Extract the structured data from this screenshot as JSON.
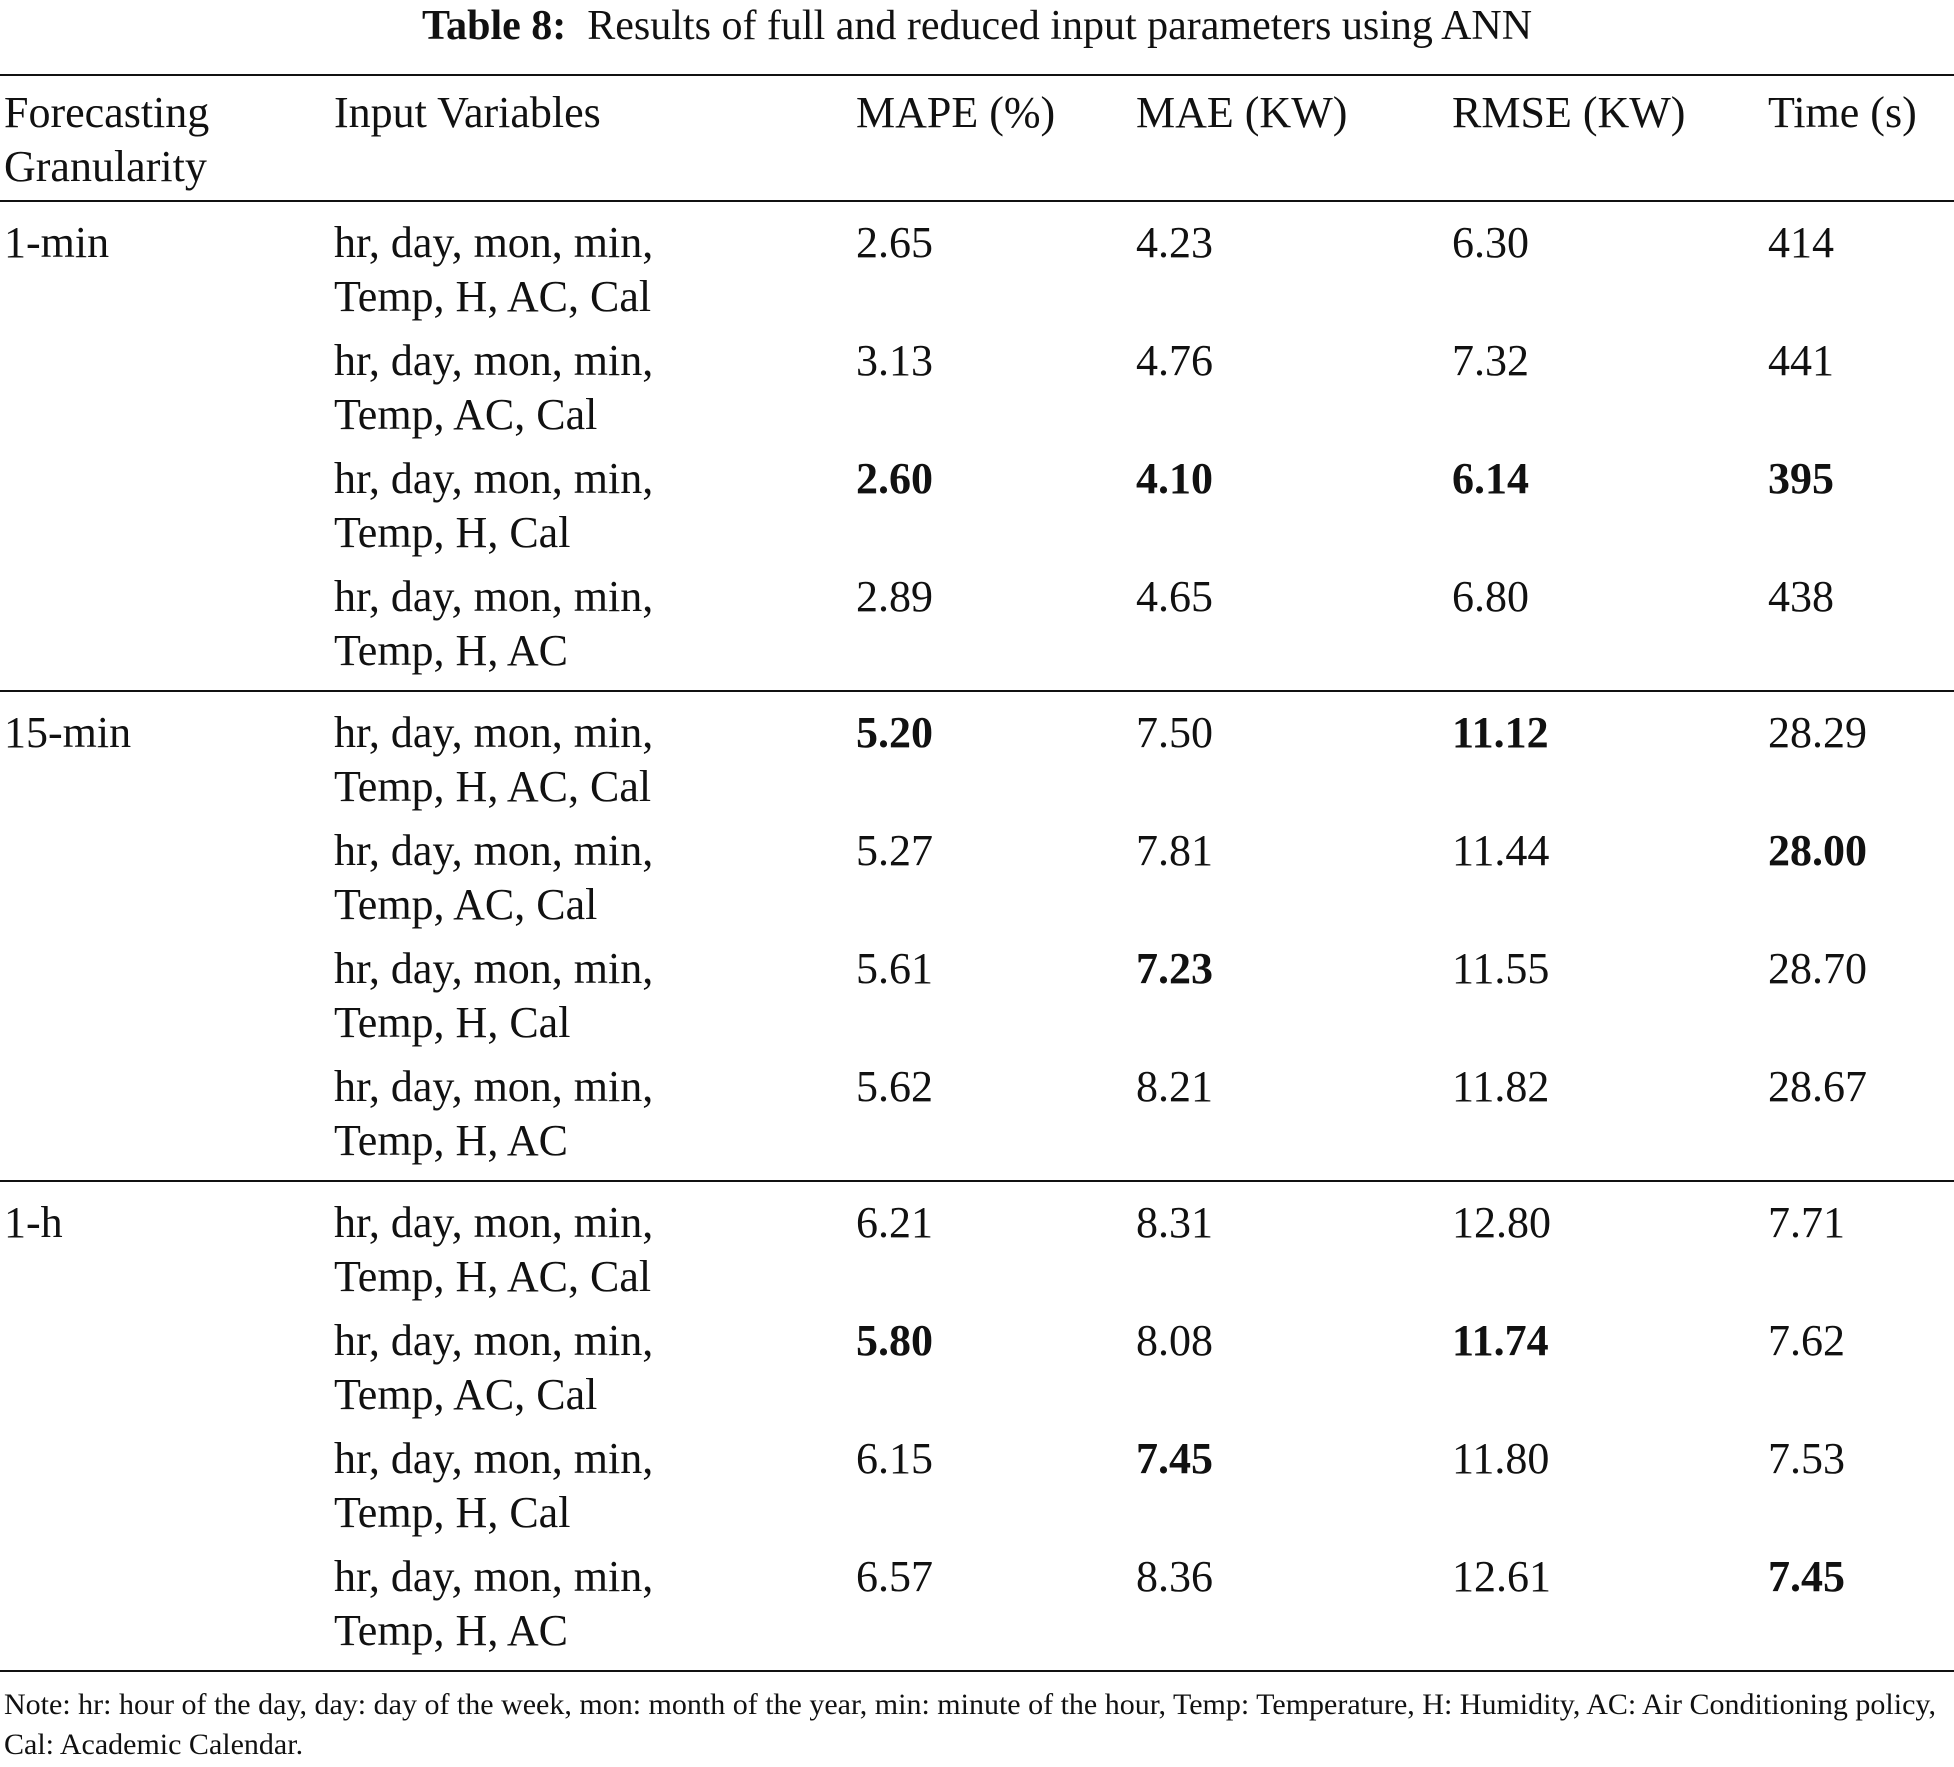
{
  "caption": {
    "label": "Table 8:",
    "text": "Results of full and reduced input parameters using ANN"
  },
  "header": {
    "granularity": "Forecasting Granularity",
    "inputs": "Input Variables",
    "mape": "MAPE (%)",
    "mae": "MAE (KW)",
    "rmse": "RMSE (KW)",
    "time": "Time (s)"
  },
  "groups": [
    {
      "granularity": "1-min",
      "rows": [
        {
          "inputs": "hr, day, mon, min, Temp, H, AC, Cal",
          "mape": "2.65",
          "mae": "4.23",
          "rmse": "6.30",
          "time": "414"
        },
        {
          "inputs": "hr, day, mon, min, Temp, AC, Cal",
          "mape": "3.13",
          "mae": "4.76",
          "rmse": "7.32",
          "time": "441"
        },
        {
          "inputs": "hr, day, mon, min, Temp, H, Cal",
          "mape": "2.60",
          "mae": "4.10",
          "rmse": "6.14",
          "time": "395"
        },
        {
          "inputs": "hr, day, mon, min, Temp, H, AC",
          "mape": "2.89",
          "mae": "4.65",
          "rmse": "6.80",
          "time": "438"
        }
      ]
    },
    {
      "granularity": "15-min",
      "rows": [
        {
          "inputs": "hr, day, mon, min, Temp, H, AC, Cal",
          "mape": "5.20",
          "mae": "7.50",
          "rmse": "11.12",
          "time": "28.29"
        },
        {
          "inputs": "hr, day, mon, min, Temp, AC, Cal",
          "mape": "5.27",
          "mae": "7.81",
          "rmse": "11.44",
          "time": "28.00"
        },
        {
          "inputs": "hr, day, mon, min, Temp, H, Cal",
          "mape": "5.61",
          "mae": "7.23",
          "rmse": "11.55",
          "time": "28.70"
        },
        {
          "inputs": "hr, day, mon, min, Temp, H, AC",
          "mape": "5.62",
          "mae": "8.21",
          "rmse": "11.82",
          "time": "28.67"
        }
      ]
    },
    {
      "granularity": "1-h",
      "rows": [
        {
          "inputs": "hr, day, mon, min, Temp, H, AC, Cal",
          "mape": "6.21",
          "mae": "8.31",
          "rmse": "12.80",
          "time": "7.71"
        },
        {
          "inputs": "hr, day, mon, min, Temp, AC, Cal",
          "mape": "5.80",
          "mae": "8.08",
          "rmse": "11.74",
          "time": "7.62"
        },
        {
          "inputs": "hr, day, mon, min, Temp, H, Cal",
          "mape": "6.15",
          "mae": "7.45",
          "rmse": "11.80",
          "time": "7.53"
        },
        {
          "inputs": "hr, day, mon, min, Temp, H, AC",
          "mape": "6.57",
          "mae": "8.36",
          "rmse": "12.61",
          "time": "7.45"
        }
      ]
    }
  ],
  "note": "Note: hr: hour of the day, day: day of the week, mon: month of the year, min: minute of the hour, Temp: Temperature, H: Humidity, AC: Air Conditioning policy, Cal: Academic Calendar."
}
